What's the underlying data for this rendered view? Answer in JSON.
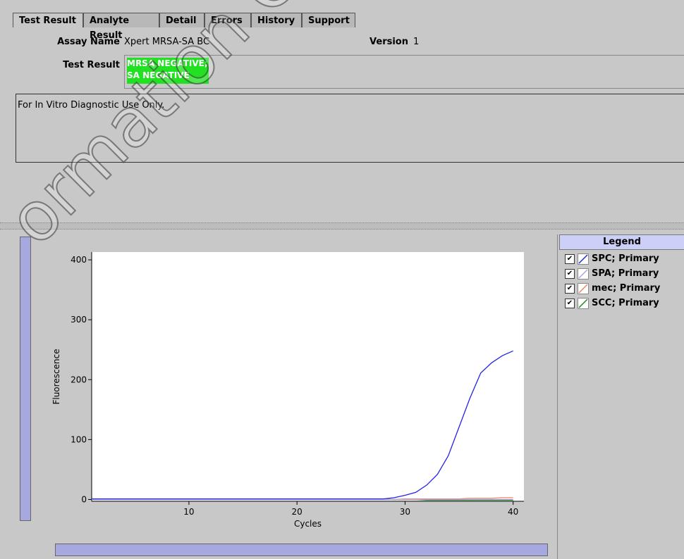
{
  "tabs": [
    "Test Result",
    "Analyte Result",
    "Detail",
    "Errors",
    "History",
    "Support"
  ],
  "assay": {
    "label": "Assay Name",
    "value": "Xpert MRSA-SA BC"
  },
  "version": {
    "label": "Version",
    "value": "1"
  },
  "test_result": {
    "label": "Test Result",
    "lines": [
      "MRSA NEGATIVE;",
      "SA NEGATIVE"
    ]
  },
  "note": "For In Vitro Diagnostic Use Only.",
  "watermark": "ormation Only --",
  "legend_title": "Legend",
  "chart_data": {
    "type": "line",
    "x_label": "Cycles",
    "y_label": "Fluorescence",
    "x": [
      1,
      2,
      3,
      4,
      5,
      6,
      7,
      8,
      9,
      10,
      11,
      12,
      13,
      14,
      15,
      16,
      17,
      18,
      19,
      20,
      21,
      22,
      23,
      24,
      25,
      26,
      27,
      28,
      29,
      30,
      31,
      32,
      33,
      34,
      35,
      36,
      37,
      38,
      39,
      40
    ],
    "xlim": [
      1,
      41
    ],
    "xticks": [
      10,
      20,
      30,
      40
    ],
    "ylim": [
      -3,
      413
    ],
    "yticks": [
      0,
      100,
      200,
      300,
      400
    ],
    "series": [
      {
        "name": "SPC; Primary",
        "color": "#2424e6",
        "values": [
          1,
          1,
          1,
          1,
          1,
          1,
          1,
          1,
          1,
          1,
          1,
          1,
          1,
          1,
          1,
          1,
          1,
          1,
          1,
          1,
          1,
          1,
          1,
          1,
          1,
          1,
          1,
          1,
          3,
          7,
          12,
          24,
          42,
          73,
          121,
          169,
          211,
          228,
          240,
          248
        ]
      },
      {
        "name": "SPA; Primary",
        "color": "#a8a8e0",
        "values": [
          0,
          0,
          0,
          0,
          0,
          0,
          0,
          0,
          0,
          0,
          0,
          0,
          0,
          0,
          0,
          0,
          0,
          0,
          0,
          0,
          0,
          0,
          0,
          0,
          0,
          0,
          0,
          0,
          0,
          0,
          0,
          0,
          0,
          0,
          0,
          0,
          0,
          0,
          0,
          0
        ]
      },
      {
        "name": "mec; Primary",
        "color": "#f08462",
        "values": [
          0,
          0,
          0,
          0,
          0,
          0,
          0,
          0,
          0,
          0,
          0,
          0,
          0,
          0,
          0,
          0,
          0,
          0,
          0,
          0,
          0,
          0,
          0,
          0,
          0,
          0,
          0,
          0,
          0,
          1,
          1,
          1,
          1,
          1,
          1,
          2,
          2,
          2,
          3,
          3
        ]
      },
      {
        "name": "SCC; Primary",
        "color": "#1e8a1e",
        "values": [
          1,
          1,
          1,
          1,
          1,
          1,
          1,
          1,
          1,
          1,
          1,
          1,
          1,
          1,
          1,
          1,
          1,
          1,
          1,
          1,
          1,
          1,
          1,
          1,
          1,
          1,
          1,
          1,
          0,
          0,
          0,
          -1,
          -1,
          -1,
          -1,
          -1,
          -1,
          -1,
          -1,
          -1
        ]
      }
    ]
  }
}
